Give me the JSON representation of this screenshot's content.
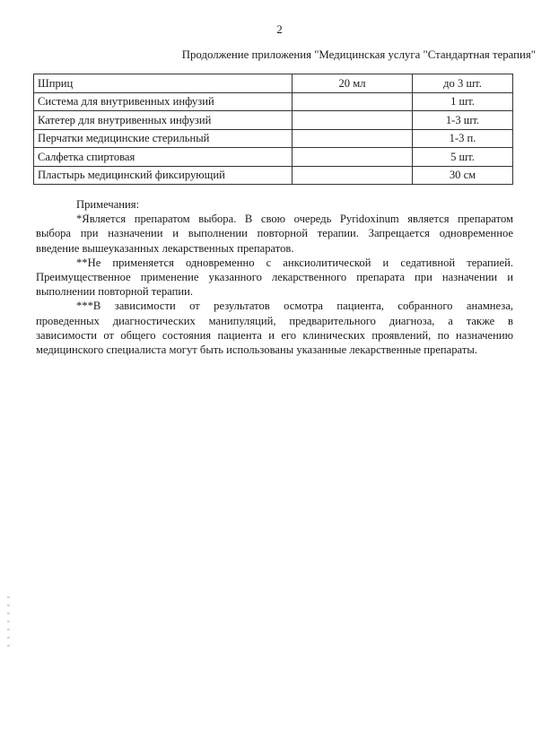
{
  "page_number": "2",
  "subtitle": "Продолжение приложения \"Медицинская услуга \"Стандартная терапия\"",
  "table": {
    "rows": [
      [
        "Шприц",
        "20 мл",
        "до 3 шт."
      ],
      [
        "Система для внутривенных инфузий",
        "",
        "1 шт."
      ],
      [
        "Катетер для внутривенных инфузий",
        "",
        "1-3 шт."
      ],
      [
        "Перчатки медицинские стерильный",
        "",
        "1-3 п."
      ],
      [
        "Салфетка спиртовая",
        "",
        "5 шт."
      ],
      [
        "Пластырь медицинский фиксирующий",
        "",
        "30 см"
      ]
    ]
  },
  "notes": {
    "heading": "Примечания:",
    "paragraphs": [
      [
        "*Является препаратом выбора. В свою очередь Pyridoxinum является препаратом",
        "выбора при назначении и выполнении повторной терапии. Запрещается одновременное",
        "введение вышеуказанных лекарственных препаратов."
      ],
      [
        "**Не применяется одновременно с анксиолитической и седативной терапией.",
        "Преимущественное применение указанного лекарственного препарата при назначении и",
        "выполнении повторной терапии."
      ],
      [
        "***В зависимости от результатов осмотра пациента, собранного анамнеза,",
        "проведенных диагностических манипуляций, предварительного диагноза, а также в",
        "зависимости от общего состояния пациента и его клинических проявлений, по назначению",
        "медицинского специалиста могут быть использованы указанные лекарственные препараты."
      ]
    ]
  }
}
